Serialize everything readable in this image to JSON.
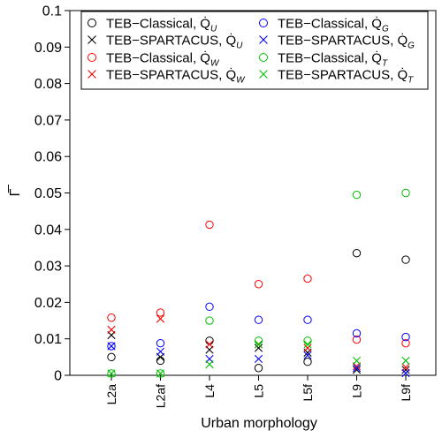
{
  "chart_data": {
    "type": "scatter",
    "title": "",
    "xlabel": "Urban morphology",
    "ylabel": "Γ̅",
    "ylim": [
      0,
      0.1
    ],
    "yticks": [
      "0",
      "0.01",
      "0.02",
      "0.03",
      "0.04",
      "0.05",
      "0.06",
      "0.07",
      "0.08",
      "0.09",
      "0.1"
    ],
    "categories": [
      "L2a",
      "L2af",
      "L4",
      "L5",
      "L5f",
      "L9",
      "L9f"
    ],
    "grid": false,
    "legend_position": "top",
    "series": [
      {
        "name": "TEB−Classical, Q̇",
        "sub": "U",
        "marker": "circle",
        "color": "#000000",
        "values": [
          0.005,
          0.004,
          0.0095,
          0.002,
          0.0037,
          0.0335,
          0.0317
        ]
      },
      {
        "name": "TEB−SPARTACUS, Q̇",
        "sub": "U",
        "marker": "cross",
        "color": "#000000",
        "values": [
          0.011,
          0.005,
          0.007,
          0.0075,
          0.0062,
          0.0015,
          0.0015
        ]
      },
      {
        "name": "TEB−Classical, Q̇",
        "sub": "W",
        "marker": "circle",
        "color": "#ff0000",
        "values": [
          0.0158,
          0.0172,
          0.0413,
          0.025,
          0.0265,
          0.0098,
          0.0088
        ]
      },
      {
        "name": "TEB−SPARTACUS, Q̇",
        "sub": "W",
        "marker": "cross",
        "color": "#ff0000",
        "values": [
          0.0125,
          0.0155,
          0.0085,
          0.0085,
          0.0075,
          0.0025,
          0.0022
        ]
      },
      {
        "name": "TEB−Classical, Q̇",
        "sub": "G",
        "marker": "circle",
        "color": "#0000ff",
        "values": [
          0.008,
          0.0088,
          0.0188,
          0.0152,
          0.0152,
          0.0115,
          0.0105
        ]
      },
      {
        "name": "TEB−SPARTACUS, Q̇",
        "sub": "G",
        "marker": "cross",
        "color": "#0000ff",
        "values": [
          0.008,
          0.0065,
          0.0045,
          0.0045,
          0.0055,
          0.002,
          0.0006
        ]
      },
      {
        "name": "TEB−Classical, Q̇",
        "sub": "T",
        "marker": "circle",
        "color": "#00c000",
        "values": [
          0.0005,
          0.0005,
          0.015,
          0.0095,
          0.0095,
          0.0495,
          0.05
        ]
      },
      {
        "name": "TEB−SPARTACUS, Q̇",
        "sub": "T",
        "marker": "cross",
        "color": "#00c000",
        "values": [
          0.0005,
          0.0005,
          0.003,
          0.0085,
          0.0085,
          0.004,
          0.004
        ]
      }
    ],
    "legend_order": [
      0,
      4,
      1,
      5,
      2,
      6,
      3,
      7
    ]
  }
}
